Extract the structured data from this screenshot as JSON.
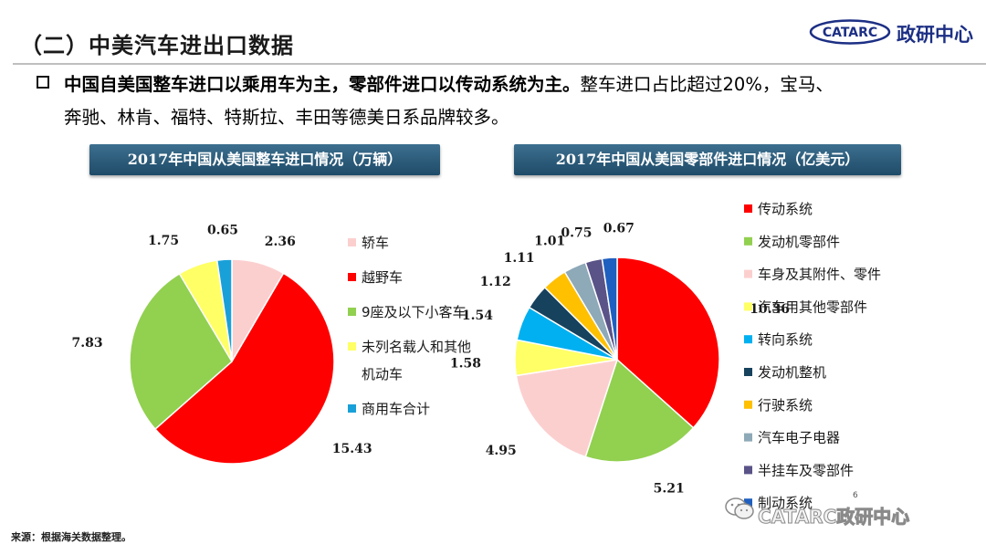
{
  "header": {
    "title": "（二）中美汽车进出口数据",
    "logo_mark": "CATARC",
    "logo_text": "政研中心"
  },
  "bullet": {
    "line1_strong": "中国自美国整车进口以乘用车为主，零部件进口以传动系统为主。",
    "line1_rest": "整车进口占比超过20%，宝马、",
    "line2": "奔驰、林肯、福特、特斯拉、丰田等德美日系品牌较多。"
  },
  "source": "来源：根据海关数据整理。",
  "page_number": "6",
  "watermark": "CATARC政研中心",
  "chart_data": [
    {
      "type": "pie",
      "title": "2017年中国从美国整车进口情况（万辆）",
      "categories": [
        "轿车",
        "越野车",
        "9座及以下小客车",
        "未列名载人和其他机动车",
        "商用车合计"
      ],
      "legend_lines": [
        [
          "轿车"
        ],
        [
          "越野车"
        ],
        [
          "9座及以下小客车"
        ],
        [
          "未列名载人和其他",
          "机动车"
        ],
        [
          "商用车合计"
        ]
      ],
      "values": [
        2.36,
        15.43,
        7.83,
        1.75,
        0.65
      ],
      "value_labels": [
        "2.36",
        "15.43",
        "7.83",
        "1.75",
        "0.65"
      ],
      "colors": [
        "#fccfcf",
        "#ff0000",
        "#92d050",
        "#ffff66",
        "#1aa0d8"
      ],
      "start_angle": 0,
      "direction": "clockwise",
      "legend_position": "right"
    },
    {
      "type": "pie",
      "title": "2017年中国从美国零部件进口情况（亿美元）",
      "categories": [
        "传动系统",
        "发动机零部件",
        "车身及其附件、零件",
        "汽车用其他零部件",
        "转向系统",
        "发动机整机",
        "行驶系统",
        "汽车电子电器",
        "半挂车及零部件",
        "制动系统"
      ],
      "legend_lines": [
        [
          "传动系统"
        ],
        [
          "发动机零部件"
        ],
        [
          "车身及其附件、零件"
        ],
        [
          "汽车用其他零部件"
        ],
        [
          "转向系统"
        ],
        [
          "发动机整机"
        ],
        [
          "行驶系统"
        ],
        [
          "汽车电子电器"
        ],
        [
          "半挂车及零部件"
        ],
        [
          "制动系统"
        ]
      ],
      "values": [
        10.36,
        5.21,
        4.95,
        1.58,
        1.54,
        1.12,
        1.11,
        1.01,
        0.75,
        0.67
      ],
      "value_labels": [
        "10.36",
        "5.21",
        "4.95",
        "1.58",
        "1.54",
        "1.12",
        "1.11",
        "1.01",
        "0.75",
        "0.67"
      ],
      "colors": [
        "#ff0000",
        "#92d050",
        "#fccfcf",
        "#ffff66",
        "#00b0f0",
        "#17425e",
        "#ffc000",
        "#8ea9b8",
        "#5a5388",
        "#1f5fbf"
      ],
      "start_angle": 0,
      "direction": "clockwise",
      "legend_position": "right"
    }
  ]
}
